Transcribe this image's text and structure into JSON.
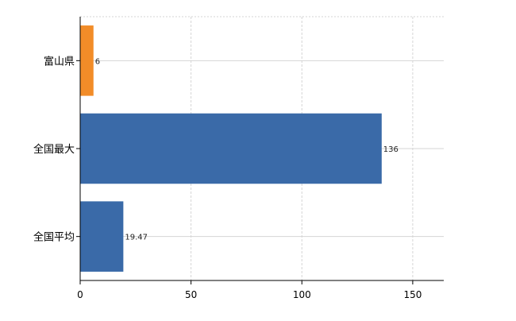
{
  "chart_data": {
    "type": "bar",
    "orientation": "horizontal",
    "categories": [
      "富山県",
      "全国最大",
      "全国平均"
    ],
    "values": [
      6,
      136,
      19.47
    ],
    "data_labels": [
      "6",
      "136",
      "19.47"
    ],
    "bar_colors": [
      "#f28c28",
      "#3a6aa8"
    ],
    "xlim": [
      0,
      164
    ],
    "xticks": [
      0,
      50,
      100,
      150
    ],
    "xtick_labels": [
      "0",
      "50",
      "100",
      "150"
    ],
    "grid": true,
    "title": "",
    "xlabel": "",
    "ylabel": ""
  }
}
